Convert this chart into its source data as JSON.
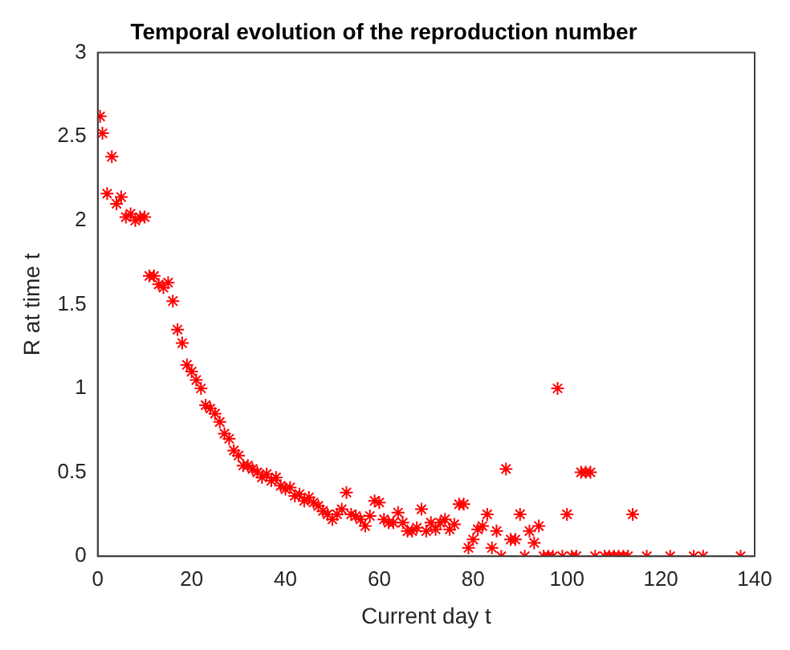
{
  "chart_data": {
    "type": "scatter",
    "title": "Temporal evolution of the reproduction number",
    "xlabel": "Current day t",
    "ylabel": "R at time t",
    "x": [
      0.5,
      1,
      2,
      3,
      4,
      5,
      6,
      7,
      8,
      9,
      10,
      11,
      12,
      13,
      14,
      15,
      16,
      17,
      18,
      19,
      20,
      21,
      22,
      23,
      24,
      25,
      26,
      27,
      28,
      29,
      30,
      31,
      32,
      33,
      34,
      35,
      36,
      37,
      38,
      39,
      40,
      41,
      42,
      43,
      44,
      45,
      46,
      47,
      48,
      49,
      50,
      51,
      52,
      53,
      54,
      55,
      56,
      57,
      58,
      59,
      60,
      61,
      62,
      63,
      64,
      65,
      66,
      67,
      68,
      69,
      70,
      71,
      72,
      73,
      74,
      75,
      76,
      77,
      78,
      79,
      80,
      81,
      82,
      83,
      84,
      85,
      86,
      87,
      88,
      89,
      90,
      91,
      92,
      93,
      94,
      95,
      96,
      97,
      98,
      99,
      100,
      101,
      102,
      103,
      104,
      105,
      106,
      108,
      109,
      110,
      111,
      112,
      113,
      114,
      117,
      122,
      127,
      129,
      137
    ],
    "series": [
      {
        "color": "#ff0000",
        "values": [
          2.62,
          2.52,
          2.16,
          2.38,
          2.1,
          2.14,
          2.02,
          2.04,
          2.0,
          2.02,
          2.02,
          1.67,
          1.67,
          1.62,
          1.6,
          1.63,
          1.52,
          1.35,
          1.27,
          1.14,
          1.1,
          1.05,
          1.0,
          0.9,
          0.88,
          0.85,
          0.8,
          0.73,
          0.7,
          0.63,
          0.6,
          0.54,
          0.54,
          0.52,
          0.5,
          0.47,
          0.49,
          0.45,
          0.47,
          0.42,
          0.4,
          0.41,
          0.36,
          0.37,
          0.33,
          0.35,
          0.32,
          0.3,
          0.27,
          0.25,
          0.22,
          0.25,
          0.28,
          0.38,
          0.25,
          0.24,
          0.22,
          0.18,
          0.24,
          0.33,
          0.32,
          0.22,
          0.2,
          0.2,
          0.26,
          0.2,
          0.15,
          0.15,
          0.17,
          0.28,
          0.15,
          0.2,
          0.16,
          0.2,
          0.22,
          0.16,
          0.19,
          0.31,
          0.31,
          0.05,
          0.1,
          0.16,
          0.18,
          0.25,
          0.05,
          0.15,
          0.0,
          0.52,
          0.1,
          0.1,
          0.25,
          0.0,
          0.15,
          0.08,
          0.18,
          0.0,
          0.0,
          0.0,
          1.0,
          0.0,
          0.25,
          0.0,
          0.0,
          0.5,
          0.5,
          0.5,
          0.0,
          0.0,
          0.0,
          0.0,
          0.0,
          0.0,
          0.0,
          0.25,
          0.0,
          0.0,
          0.0,
          0.0,
          0.0
        ]
      }
    ],
    "xlim": [
      0,
      140
    ],
    "xticks": [
      0,
      20,
      40,
      60,
      80,
      100,
      120,
      140
    ],
    "ylim": [
      0,
      3
    ],
    "yticks": [
      0,
      0.5,
      1,
      1.5,
      2,
      2.5,
      3
    ],
    "marker": "cross",
    "grid": false,
    "legend": false
  }
}
